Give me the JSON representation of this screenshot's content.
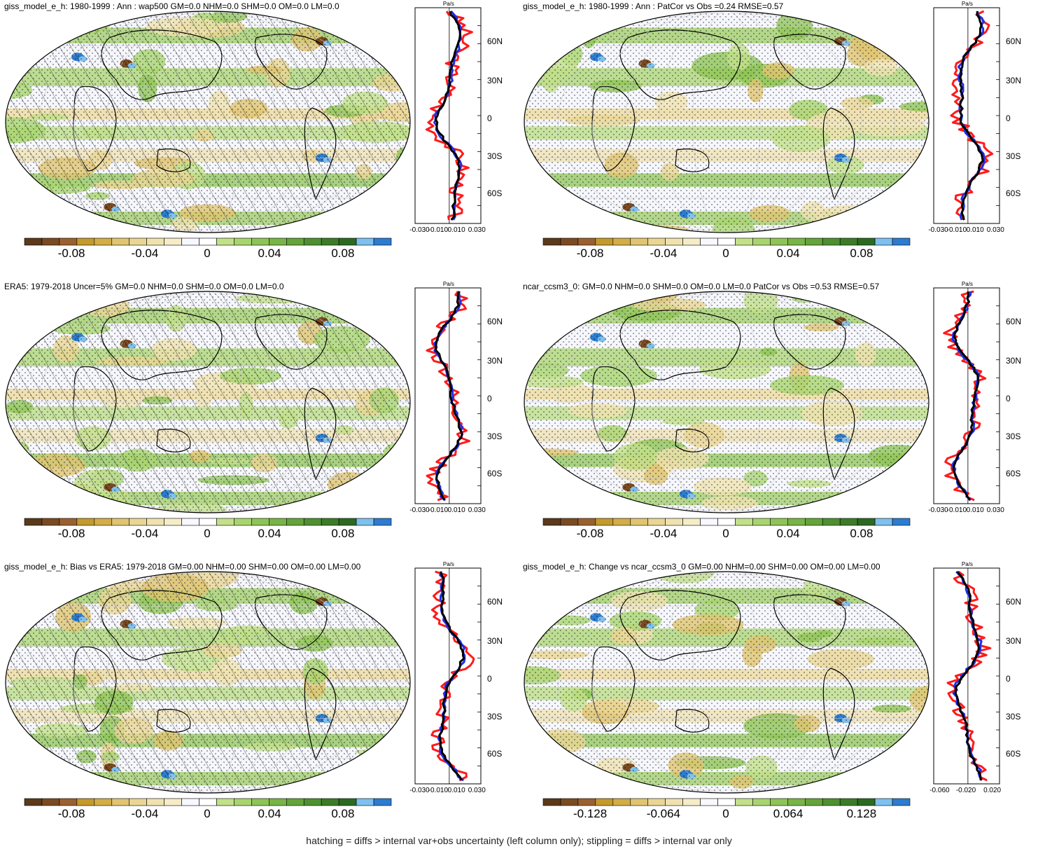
{
  "panels": [
    {
      "title": "giss_model_e_h: 1980-1999 : Ann : wap500 GM=0.0 NHM=0.0 SHM=0.0 OM=0.0 LM=0.0",
      "hatching": true,
      "cbar_labels": [
        "-0.08",
        "-0.04",
        "0",
        "0.04",
        "0.08"
      ],
      "unit": "Pa/s",
      "lat_labels": [
        "60N",
        "30N",
        "0",
        "30S",
        "60S"
      ],
      "x_ticks": [
        "-0.030",
        "-0.010",
        "0.010",
        "0.030"
      ]
    },
    {
      "title": "giss_model_e_h: 1980-1999 : Ann : PatCor vs Obs =0.24 RMSE=0.57",
      "hatching": false,
      "cbar_labels": [
        "-0.08",
        "-0.04",
        "0",
        "0.04",
        "0.08"
      ],
      "unit": "Pa/s",
      "lat_labels": [
        "60N",
        "30N",
        "0",
        "30S",
        "60S"
      ],
      "x_ticks": [
        "-0.030",
        "-0.010",
        "0.010",
        "0.030"
      ]
    },
    {
      "title": "ERA5: 1979-2018 Uncer=5% GM=0.0 NHM=0.0 SHM=0.0 OM=0.0 LM=0.0",
      "hatching": true,
      "cbar_labels": [
        "-0.08",
        "-0.04",
        "0",
        "0.04",
        "0.08"
      ],
      "unit": "Pa/s",
      "lat_labels": [
        "60N",
        "30N",
        "0",
        "30S",
        "60S"
      ],
      "x_ticks": [
        "-0.030",
        "-0.010",
        "0.010",
        "0.030"
      ]
    },
    {
      "title": "ncar_ccsm3_0: GM=0.0 NHM=0.0 SHM=0.0 OM=0.0 LM=0.0 PatCor vs Obs =0.53 RMSE=0.57",
      "hatching": false,
      "cbar_labels": [
        "-0.08",
        "-0.04",
        "0",
        "0.04",
        "0.08"
      ],
      "unit": "Pa/s",
      "lat_labels": [
        "60N",
        "30N",
        "0",
        "30S",
        "60S"
      ],
      "x_ticks": [
        "-0.030",
        "-0.010",
        "0.010",
        "0.030"
      ]
    },
    {
      "title": "giss_model_e_h: Bias vs ERA5: 1979-2018 GM=0.00 NHM=0.00 SHM=0.00 OM=0.00 LM=0.00",
      "hatching": true,
      "cbar_labels": [
        "-0.08",
        "-0.04",
        "0",
        "0.04",
        "0.08"
      ],
      "unit": "Pa/s",
      "lat_labels": [
        "60N",
        "30N",
        "0",
        "30S",
        "60S"
      ],
      "x_ticks": [
        "-0.030",
        "-0.010",
        "0.010",
        "0.030"
      ]
    },
    {
      "title": "giss_model_e_h: Change vs ncar_ccsm3_0 GM=0.00 NHM=0.00 SHM=0.00 OM=0.00 LM=0.00",
      "hatching": false,
      "cbar_labels": [
        "-0.128",
        "-0.064",
        "0",
        "0.064",
        "0.128"
      ],
      "unit": "Pa/s",
      "lat_labels": [
        "60N",
        "30N",
        "0",
        "30S",
        "60S"
      ],
      "x_ticks": [
        "-0.060",
        "-0.020",
        "0.020"
      ]
    }
  ],
  "colorbar_colors": [
    "#5a3a1a",
    "#7a4a22",
    "#9a6030",
    "#c49a2c",
    "#d2ad48",
    "#e0c470",
    "#ead694",
    "#f0e2b0",
    "#f5ecc8",
    "#f8f8ff",
    "#ffffff",
    "#c2e08a",
    "#a8d46e",
    "#8ec456",
    "#78b446",
    "#64a43a",
    "#4e9030",
    "#3c7c28",
    "#2c6a22",
    "#7ec0ee",
    "#2c7cd0"
  ],
  "legend": {
    "note": "hatching = diffs > internal var+obs uncertainty (left column only); stippling = diffs > internal var only"
  }
}
